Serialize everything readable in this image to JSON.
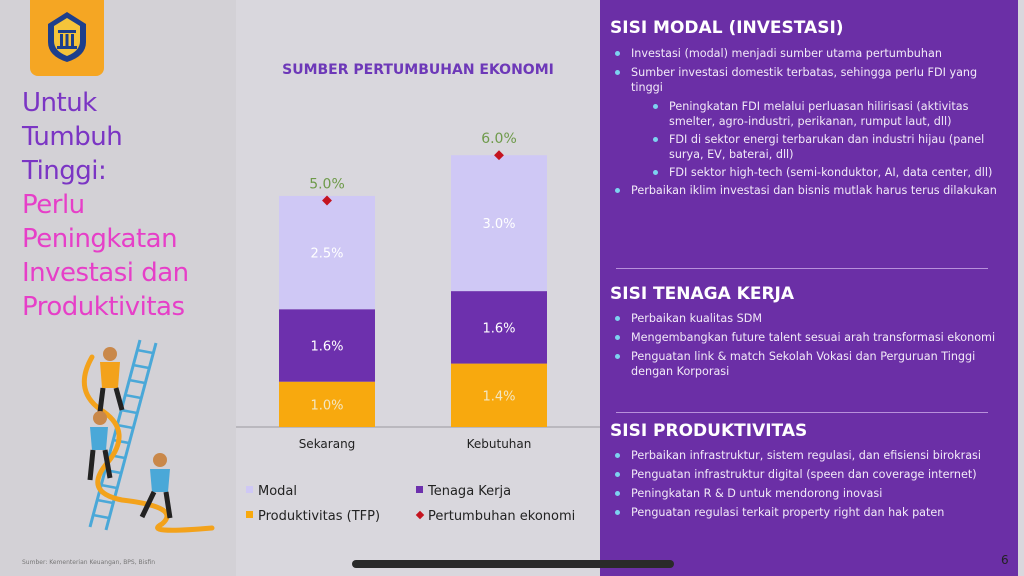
{
  "left": {
    "title_purple": [
      "Untuk",
      "Tumbuh",
      "Tinggi:"
    ],
    "title_magenta": [
      "Perlu",
      "Peningkatan",
      "Investasi dan",
      "Produktivitas"
    ],
    "source": "Sumber: Kementerian Keuangan, BPS, Bisfin"
  },
  "chart_data": {
    "type": "bar",
    "title": "SUMBER PERTUMBUHAN EKONOMI",
    "categories": [
      "Sekarang",
      "Kebutuhan"
    ],
    "series": [
      {
        "name": "Produktivitas (TFP)",
        "values": [
          1.0,
          1.4
        ],
        "labels": [
          "1.0%",
          "1.4%"
        ],
        "color": "#f8a90e"
      },
      {
        "name": "Tenaga Kerja",
        "values": [
          1.6,
          1.6
        ],
        "labels": [
          "1.6%",
          "1.6%"
        ],
        "color": "#6d30ad"
      },
      {
        "name": "Modal",
        "values": [
          2.5,
          3.0
        ],
        "labels": [
          "2.5%",
          "3.0%"
        ],
        "color": "#cfc8f5"
      }
    ],
    "line_series": {
      "name": "Pertumbuhan ekonomi",
      "values": [
        5.0,
        6.0
      ],
      "labels": [
        "5.0%",
        "6.0%"
      ],
      "color": "#c4141f"
    },
    "stacked": true,
    "legend": [
      {
        "name": "Modal",
        "color": "#cfc8f5"
      },
      {
        "name": "Tenaga Kerja",
        "color": "#6d30ad"
      },
      {
        "name": "Produktivitas (TFP)",
        "color": "#f8a90e"
      },
      {
        "name": "Pertumbuhan ekonomi",
        "color": "#c4141f"
      }
    ],
    "legend_position": "bottom",
    "grid": false
  },
  "right": {
    "modal": {
      "title": "SISI MODAL (INVESTASI)",
      "items": [
        {
          "text": "Investasi (modal) menjadi sumber utama pertumbuhan",
          "sub": false
        },
        {
          "text": "Sumber investasi domestik terbatas, sehingga perlu FDI yang tinggi",
          "sub": false
        },
        {
          "text": "Peningkatan FDI melalui perluasan hilirisasi (aktivitas smelter, agro-industri, perikanan, rumput laut, dll)",
          "sub": true
        },
        {
          "text": "FDI di sektor energi terbarukan dan industri hijau (panel surya, EV, baterai, dll)",
          "sub": true
        },
        {
          "text": "FDI sektor high-tech (semi-konduktor, AI, data center, dll)",
          "sub": true
        },
        {
          "text": "Perbaikan iklim investasi dan bisnis mutlak harus terus dilakukan",
          "sub": false
        }
      ]
    },
    "tenaga": {
      "title": "SISI TENAGA KERJA",
      "items": [
        {
          "text": "Perbaikan kualitas SDM",
          "sub": false
        },
        {
          "text": "Mengembangkan future talent sesuai arah transformasi ekonomi",
          "sub": false
        },
        {
          "text": "Penguatan link & match Sekolah Vokasi dan Perguruan Tinggi dengan Korporasi",
          "sub": false
        }
      ]
    },
    "produktivitas": {
      "title": "SISI PRODUKTIVITAS",
      "items": [
        {
          "text": "Perbaikan infrastruktur, sistem regulasi, dan efisiensi birokrasi",
          "sub": false
        },
        {
          "text": "Penguatan infrastruktur digital (speen dan coverage internet)",
          "sub": false
        },
        {
          "text": "Peningkatan R & D untuk mendorong inovasi",
          "sub": false
        },
        {
          "text": "Penguatan regulasi terkait property right dan hak paten",
          "sub": false
        }
      ]
    }
  },
  "page_number": "6"
}
